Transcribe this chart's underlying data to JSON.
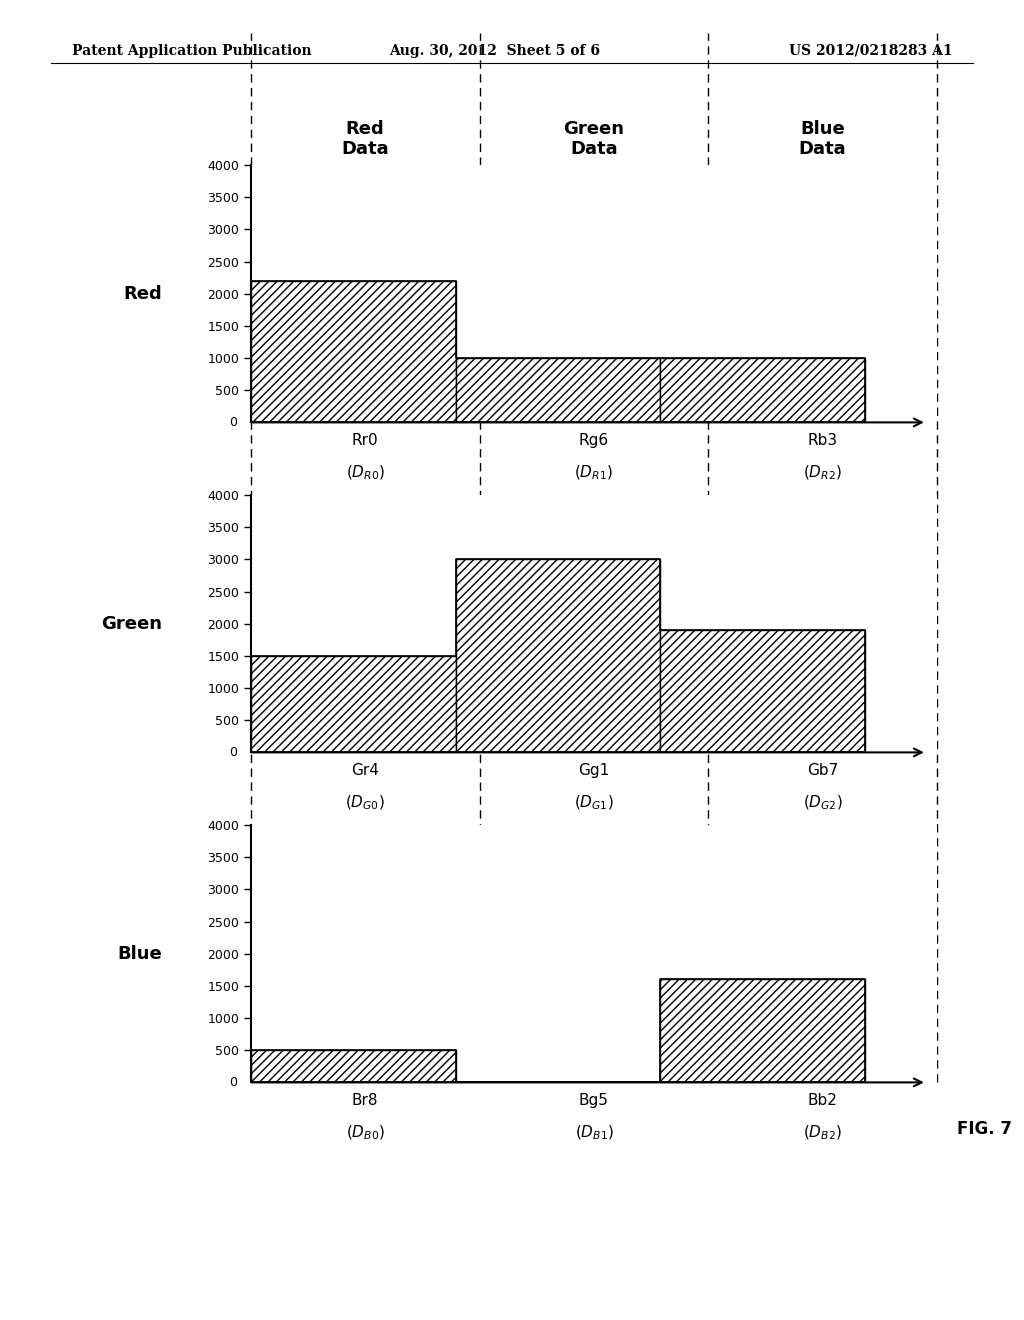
{
  "header_left": "Patent Application Publication",
  "header_mid": "Aug. 30, 2012  Sheet 5 of 6",
  "header_right": "US 2012/0218283 A1",
  "column_labels": [
    "Red\nData",
    "Green\nData",
    "Blue\nData"
  ],
  "rows": [
    {
      "row_label": "Red",
      "values": [
        2200,
        1000,
        1000
      ],
      "x_top": [
        "Rr0",
        "Rg6",
        "Rb3"
      ],
      "x_subs": [
        "R0",
        "R1",
        "R2"
      ]
    },
    {
      "row_label": "Green",
      "values": [
        1500,
        3000,
        1900
      ],
      "x_top": [
        "Gr4",
        "Gg1",
        "Gb7"
      ],
      "x_subs": [
        "G0",
        "G1",
        "G2"
      ]
    },
    {
      "row_label": "Blue",
      "values": [
        500,
        0,
        1600
      ],
      "x_top": [
        "Br8",
        "Bg5",
        "Bb2"
      ],
      "x_subs": [
        "B0",
        "B1",
        "B2"
      ]
    }
  ],
  "ylim": [
    0,
    4000
  ],
  "yticks": [
    0,
    500,
    1000,
    1500,
    2000,
    2500,
    3000,
    3500,
    4000
  ],
  "hatch_pattern": "////",
  "fig_label": "FIG. 7",
  "background_color": "#ffffff"
}
